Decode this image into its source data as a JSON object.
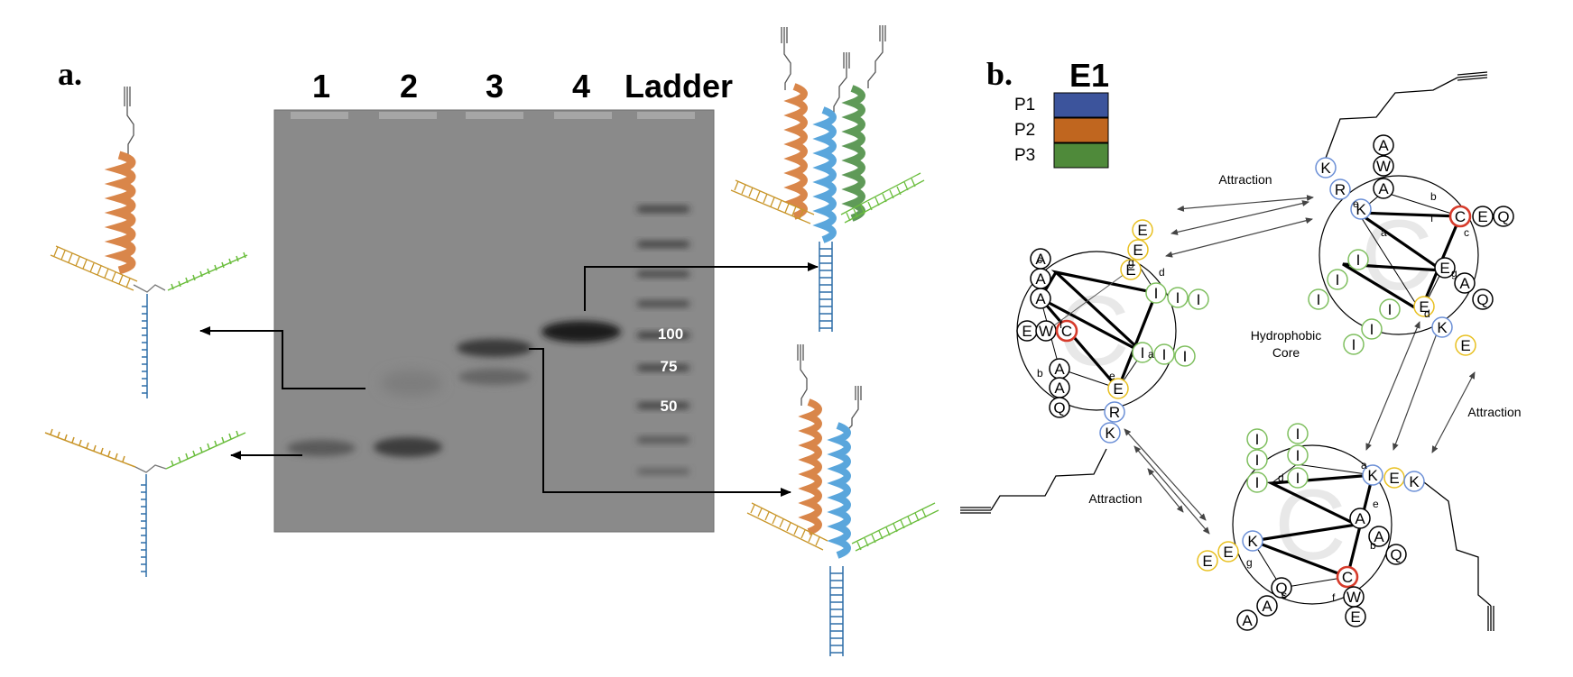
{
  "panel_a": {
    "label": "a.",
    "lanes": [
      "1",
      "2",
      "3",
      "4",
      "Ladder"
    ],
    "ladder_marks": [
      "100",
      "75",
      "50"
    ]
  },
  "panel_b": {
    "label": "b.",
    "legend": {
      "title": "E1",
      "items": [
        {
          "label": "P1",
          "color": "#3c549c"
        },
        {
          "label": "P2",
          "color": "#c0661f"
        },
        {
          "label": "P3",
          "color": "#4f8a3a"
        }
      ]
    },
    "annotations": {
      "attraction": "Attraction",
      "core_line1": "Hydrophobic",
      "core_line2": "Core",
      "core_glyph": "C"
    },
    "heptad_positions": [
      "a",
      "b",
      "c",
      "d",
      "e",
      "f",
      "g"
    ]
  },
  "colors": {
    "gel": "#8a8a8a",
    "p1_blue": "#3c549c",
    "p2_orange": "#c0661f",
    "p3_green": "#4f8a3a",
    "hydrophobic_ring": "#7fbf5f",
    "acidic_ring": "#e8c020",
    "basic_ring": "#6b8fd6",
    "cys_ring": "#d63a2a"
  }
}
